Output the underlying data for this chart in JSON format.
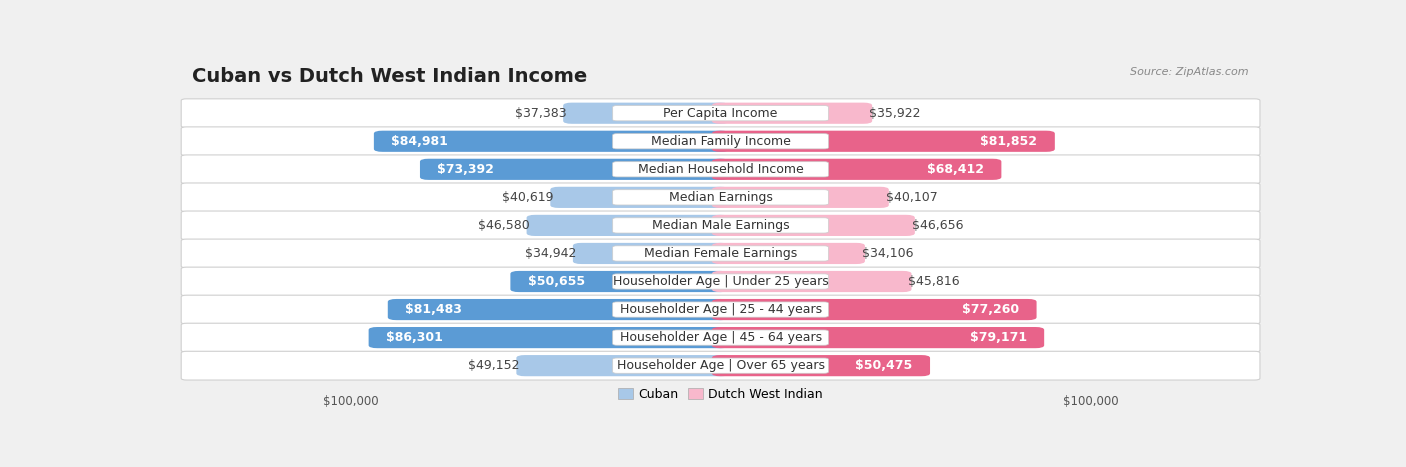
{
  "title": "Cuban vs Dutch West Indian Income",
  "source": "Source: ZipAtlas.com",
  "categories": [
    "Per Capita Income",
    "Median Family Income",
    "Median Household Income",
    "Median Earnings",
    "Median Male Earnings",
    "Median Female Earnings",
    "Householder Age | Under 25 years",
    "Householder Age | 25 - 44 years",
    "Householder Age | 45 - 64 years",
    "Householder Age | Over 65 years"
  ],
  "cuban_values": [
    37383,
    84981,
    73392,
    40619,
    46580,
    34942,
    50655,
    81483,
    86301,
    49152
  ],
  "dutch_values": [
    35922,
    81852,
    68412,
    40107,
    46656,
    34106,
    45816,
    77260,
    79171,
    50475
  ],
  "cuban_labels": [
    "$37,383",
    "$84,981",
    "$73,392",
    "$40,619",
    "$46,580",
    "$34,942",
    "$50,655",
    "$81,483",
    "$86,301",
    "$49,152"
  ],
  "dutch_labels": [
    "$35,922",
    "$81,852",
    "$68,412",
    "$40,107",
    "$46,656",
    "$34,106",
    "$45,816",
    "$77,260",
    "$79,171",
    "$50,475"
  ],
  "cuban_color_light": "#a8c8e8",
  "cuban_color_dark": "#5b9bd5",
  "dutch_color_light": "#f8b8cc",
  "dutch_color_dark": "#e8638a",
  "max_value": 100000,
  "xlabel_left": "$100,000",
  "xlabel_right": "$100,000",
  "background_color": "#f0f0f0",
  "title_fontsize": 14,
  "label_fontsize": 9,
  "cat_fontsize": 9,
  "source_fontsize": 8,
  "legend_fontsize": 9
}
